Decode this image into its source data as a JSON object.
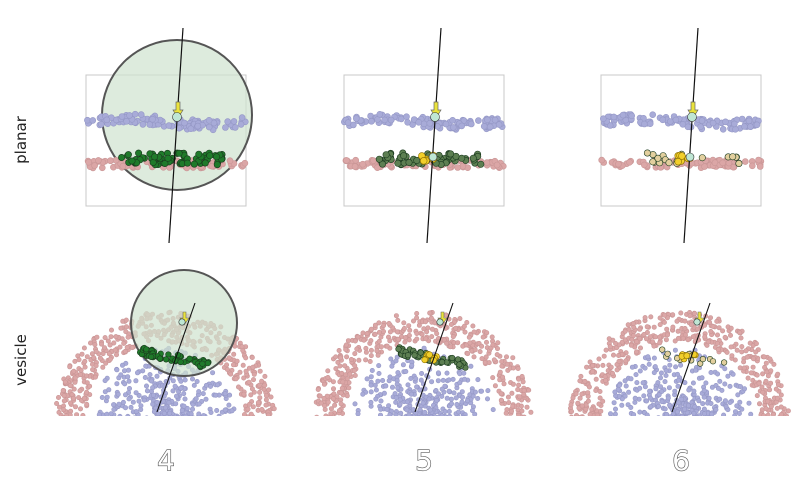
{
  "row_labels": {
    "planar": "planar",
    "vesicle": "vesicle"
  },
  "column_labels": [
    "4",
    "5",
    "6"
  ],
  "colors": {
    "upper_leaflet": "#a8abd8",
    "lower_leaflet": "#dba6a6",
    "selected_dark": "#1f7a2a",
    "selected_mid": "#5d7f52",
    "selected_light": "#e2cf9e",
    "highlight": "#f2cf2a",
    "selection_sphere_fill": "#cfe3cf",
    "selection_sphere_stroke": "#555555",
    "normal_arrow": "#eae33c",
    "center_marker": "#bfe6d4",
    "box_outline": "#c8c8c8",
    "axis_line": "#111111"
  },
  "panels": [
    {
      "id": "planar-4",
      "row": "planar",
      "column": "4",
      "has_selection_sphere": true,
      "selected_style": "dark",
      "highlight_count": 0
    },
    {
      "id": "planar-5",
      "row": "planar",
      "column": "5",
      "has_selection_sphere": false,
      "selected_style": "mid",
      "highlight_count": 8
    },
    {
      "id": "planar-6",
      "row": "planar",
      "column": "6",
      "has_selection_sphere": false,
      "selected_style": "light",
      "highlight_count": 8
    },
    {
      "id": "vesicle-4",
      "row": "vesicle",
      "column": "4",
      "has_selection_sphere": true,
      "selected_style": "dark",
      "highlight_count": 0
    },
    {
      "id": "vesicle-5",
      "row": "vesicle",
      "column": "5",
      "has_selection_sphere": false,
      "selected_style": "mid",
      "highlight_count": 8
    },
    {
      "id": "vesicle-6",
      "row": "vesicle",
      "column": "6",
      "has_selection_sphere": false,
      "selected_style": "light",
      "highlight_count": 8
    }
  ]
}
